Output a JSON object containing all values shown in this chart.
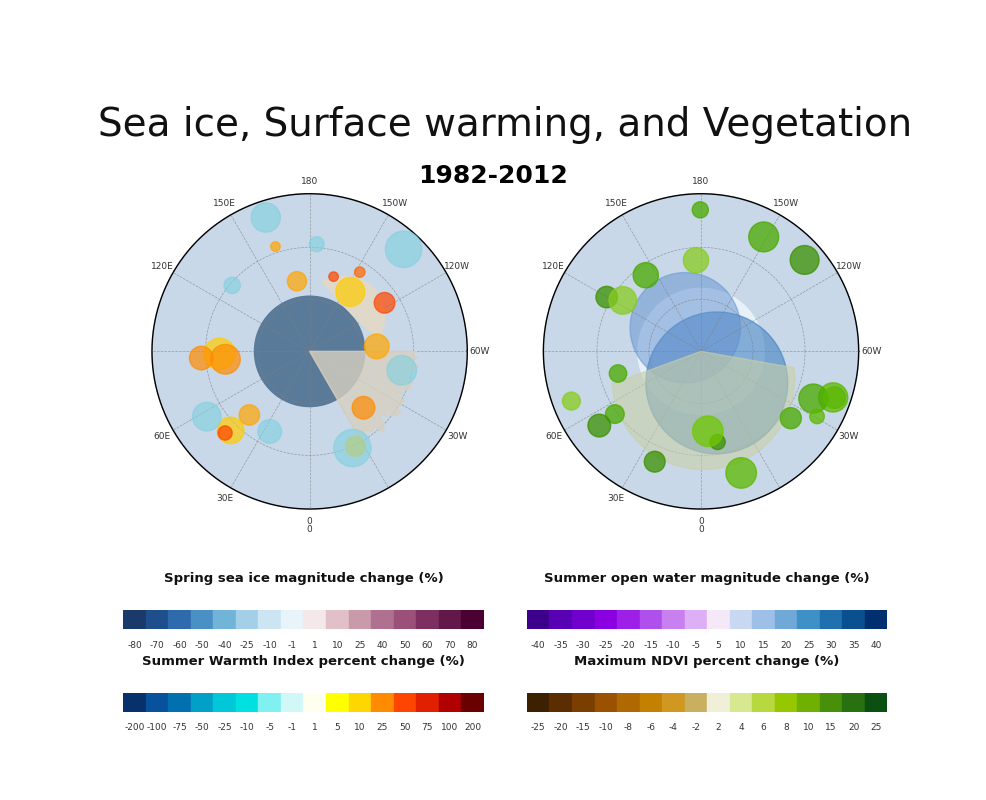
{
  "title": "Sea ice, Surface warming, and Vegetation",
  "year_label": "1982-2012",
  "colorbars": {
    "sea_ice": {
      "label": "Spring sea ice magnitude change (%)",
      "ticks": [
        -80,
        -70,
        -60,
        -50,
        -40,
        -25,
        -10,
        -1,
        1,
        10,
        25,
        40,
        50,
        60,
        70,
        80
      ],
      "colors": [
        "#1a3a6b",
        "#1f4e8c",
        "#2e6bac",
        "#4a90c4",
        "#72b4d8",
        "#a3d0e8",
        "#cce5f2",
        "#e8f4f9",
        "#f5e8ea",
        "#e2c0c8",
        "#c99aaa",
        "#b07090",
        "#9a5078",
        "#7d3060",
        "#621848",
        "#4a0030"
      ]
    },
    "warmth": {
      "label": "Summer Warmth Index percent change (%)",
      "ticks": [
        -200,
        -100,
        -75,
        -50,
        -25,
        -10,
        -5,
        -1,
        1,
        5,
        10,
        25,
        50,
        75,
        100,
        200
      ],
      "colors": [
        "#08306b",
        "#08519c",
        "#0070b0",
        "#00a0c8",
        "#00c8d8",
        "#00e0e0",
        "#80f0f0",
        "#d0f8f8",
        "#fffff0",
        "#ffff00",
        "#ffd700",
        "#ff8c00",
        "#ff4500",
        "#e02000",
        "#b00000",
        "#6b0000"
      ]
    },
    "open_water": {
      "label": "Summer open water magnitude change (%)",
      "ticks": [
        -40,
        -35,
        -30,
        -25,
        -20,
        -15,
        -10,
        -5,
        5,
        10,
        15,
        20,
        25,
        30,
        35,
        40
      ],
      "colors": [
        "#3d008c",
        "#5800b4",
        "#7000cc",
        "#8a00e0",
        "#9e20e8",
        "#b050ec",
        "#c880f0",
        "#ddb0f5",
        "#f5e8f8",
        "#c8d8f0",
        "#9ec0e8",
        "#70a8d8",
        "#4090c8",
        "#2070b0",
        "#0a5090",
        "#003070"
      ]
    },
    "ndvi": {
      "label": "Maximum NDVI percent change (%)",
      "ticks": [
        -25,
        -20,
        -15,
        -10,
        -8,
        -6,
        -4,
        -2,
        2,
        4,
        6,
        8,
        10,
        15,
        20,
        25
      ],
      "colors": [
        "#3d2000",
        "#5a2e00",
        "#7a3e00",
        "#9a5200",
        "#b06800",
        "#c48000",
        "#d09820",
        "#c8b060",
        "#f0f0d8",
        "#d8e890",
        "#b8d840",
        "#96c800",
        "#70b000",
        "#48900a",
        "#287010",
        "#0a5010"
      ]
    }
  },
  "map_labels_left": [
    "180",
    "150W",
    "120W",
    "60W",
    "30W",
    "0",
    "30E",
    "60E",
    "120E",
    "150E"
  ],
  "map_labels_right": [
    "180",
    "150W",
    "120W",
    "60W",
    "30W",
    "0",
    "30E",
    "60E",
    "120E",
    "150E"
  ],
  "left_map_title": "Spring sea ice magnitude change (%)",
  "right_map_title": "Summer open water magnitude change (%)"
}
